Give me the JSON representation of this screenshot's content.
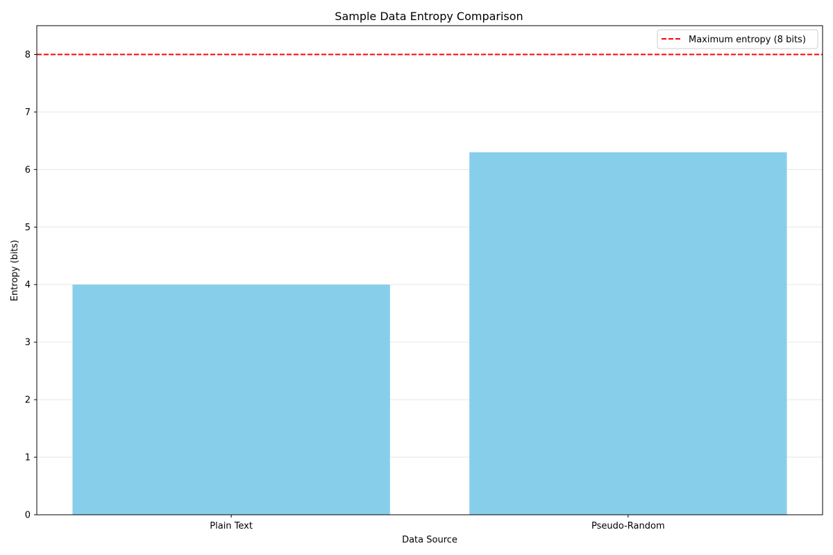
{
  "chart_data": {
    "type": "bar",
    "title": "Sample Data Entropy Comparison",
    "xlabel": "Data Source",
    "ylabel": "Entropy (bits)",
    "categories": [
      "Plain Text",
      "Pseudo-Random"
    ],
    "values": [
      4.0,
      6.3
    ],
    "ylim": [
      0,
      8.5
    ],
    "yticks": [
      0,
      1,
      2,
      3,
      4,
      5,
      6,
      7,
      8
    ],
    "grid": "horizontal",
    "reference_line": {
      "value": 8,
      "label": "Maximum entropy (8 bits)",
      "style": "dashed",
      "color": "#ff0000"
    },
    "legend_position": "top-right",
    "bar_color": "#87ceeb"
  }
}
